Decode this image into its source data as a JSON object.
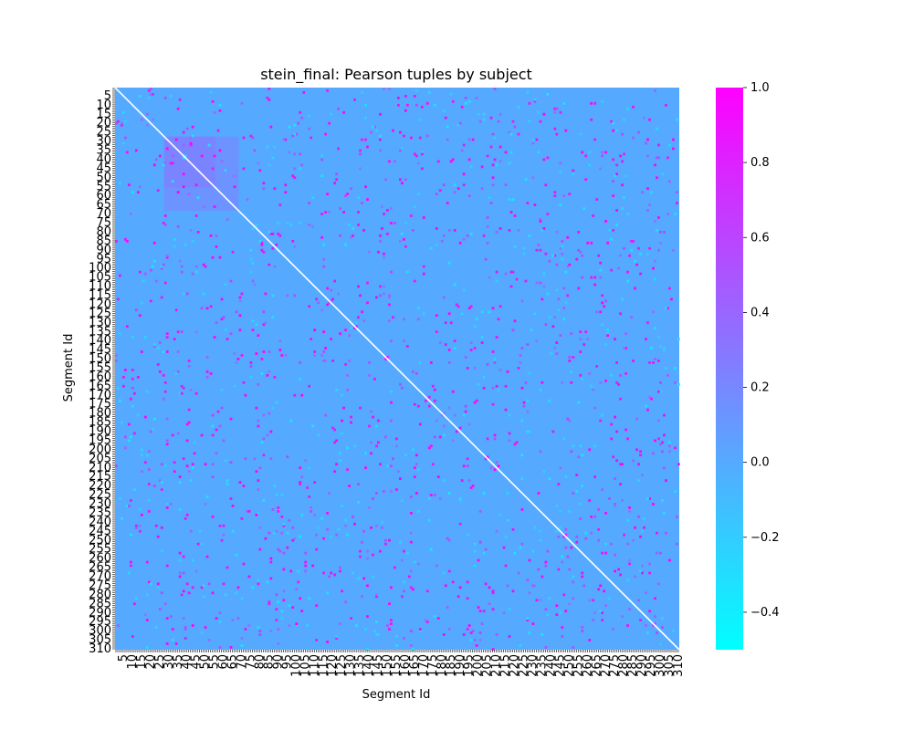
{
  "chart_data": {
    "type": "heatmap",
    "title": "stein_final: Pearson tuples by subject",
    "xlabel": "Segment Id",
    "ylabel": "Segment Id",
    "n_segments": 310,
    "x_tick_labels": [
      "5",
      "10",
      "15",
      "20",
      "25",
      "30",
      "35",
      "40",
      "45",
      "50",
      "55",
      "60",
      "65",
      "70",
      "75",
      "80",
      "85",
      "90",
      "95",
      "100",
      "105",
      "110",
      "115",
      "120",
      "125",
      "130",
      "135",
      "140",
      "145",
      "150",
      "155",
      "160",
      "165",
      "170",
      "175",
      "180",
      "185",
      "190",
      "195",
      "200",
      "205",
      "210",
      "215",
      "220",
      "225",
      "230",
      "235",
      "240",
      "245",
      "250",
      "255",
      "260",
      "265",
      "270",
      "275",
      "280",
      "285",
      "290",
      "295",
      "300",
      "305",
      "310"
    ],
    "y_tick_labels": [
      "5",
      "10",
      "15",
      "20",
      "25",
      "30",
      "35",
      "40",
      "45",
      "50",
      "55",
      "60",
      "65",
      "70",
      "75",
      "80",
      "85",
      "90",
      "95",
      "100",
      "105",
      "110",
      "115",
      "120",
      "125",
      "130",
      "135",
      "140",
      "145",
      "150",
      "155",
      "160",
      "165",
      "170",
      "175",
      "180",
      "185",
      "190",
      "195",
      "200",
      "205",
      "210",
      "215",
      "220",
      "225",
      "230",
      "235",
      "240",
      "245",
      "250",
      "255",
      "260",
      "265",
      "270",
      "275",
      "280",
      "285",
      "290",
      "295",
      "300",
      "305",
      "310"
    ],
    "zlim": [
      -0.5,
      1.0
    ],
    "baseline_value": 0.0,
    "diagonal_value": 1.0,
    "colormap": "cool",
    "colormap_colors": [
      "#00ffff",
      "#ff00ff"
    ],
    "colorbar_ticks": [
      -0.4,
      -0.2,
      0.0,
      0.2,
      0.4,
      0.6,
      0.8,
      1.0
    ],
    "colorbar_tick_labels": [
      "−0.4",
      "−0.2",
      "0.0",
      "0.2",
      "0.4",
      "0.6",
      "0.8",
      "1.0"
    ],
    "highlight_blocks": [
      {
        "segments": [
          28,
          55
        ],
        "value": 0.35
      },
      {
        "segments": [
          28,
          68
        ],
        "value": 0.25
      }
    ]
  }
}
